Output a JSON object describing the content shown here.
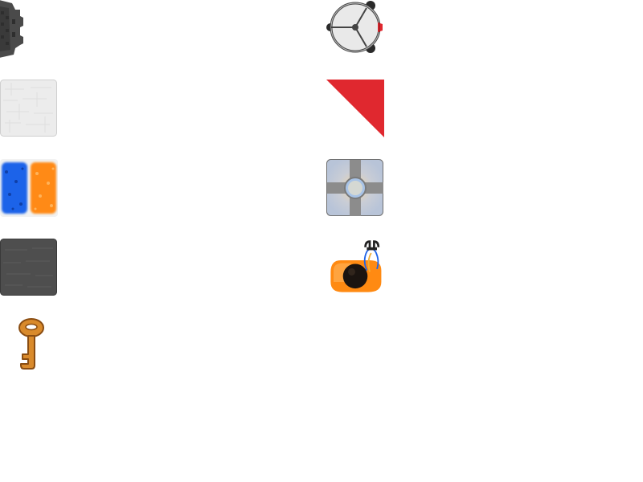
{
  "sprites": [
    {
      "name": "turret-wall-piece",
      "icon": "turret-icon",
      "colors": {
        "body": "#4a4a4a",
        "dark": "#2e2e2e"
      }
    },
    {
      "name": "white-panel-tile",
      "icon": "white-tile-icon",
      "colors": {
        "fill": "#ececec",
        "edge": "#cfcfcf"
      }
    },
    {
      "name": "portal-pair",
      "icon": "portal-pair-icon",
      "colors": {
        "blue": "#1e63e9",
        "orange": "#ff8a12"
      }
    },
    {
      "name": "dark-panel-tile",
      "icon": "dark-tile-icon",
      "colors": {
        "fill": "#4e4e4e",
        "edge": "#3a3a3a"
      }
    },
    {
      "name": "key-item",
      "icon": "key-icon",
      "colors": {
        "fill": "#d98a2b",
        "outline": "#8a4d12"
      }
    },
    {
      "name": "sphere-bot",
      "icon": "sphere-bot-icon",
      "colors": {
        "shell": "#e9e9e9",
        "line": "#444444",
        "eye": "#e0282f"
      }
    },
    {
      "name": "red-corner-triangle",
      "icon": "triangle-icon",
      "colors": {
        "fill": "#e0282f"
      }
    },
    {
      "name": "floor-button",
      "icon": "floor-button-icon",
      "colors": {
        "plate": "#c9cdd6",
        "cross": "#8c8c8c",
        "center": "#a8c3e6"
      }
    },
    {
      "name": "player-character",
      "icon": "player-icon",
      "colors": {
        "body": "#ff8a12",
        "head": "#1b1410",
        "gun": "#222222",
        "wire": "#1e63e9"
      }
    }
  ]
}
